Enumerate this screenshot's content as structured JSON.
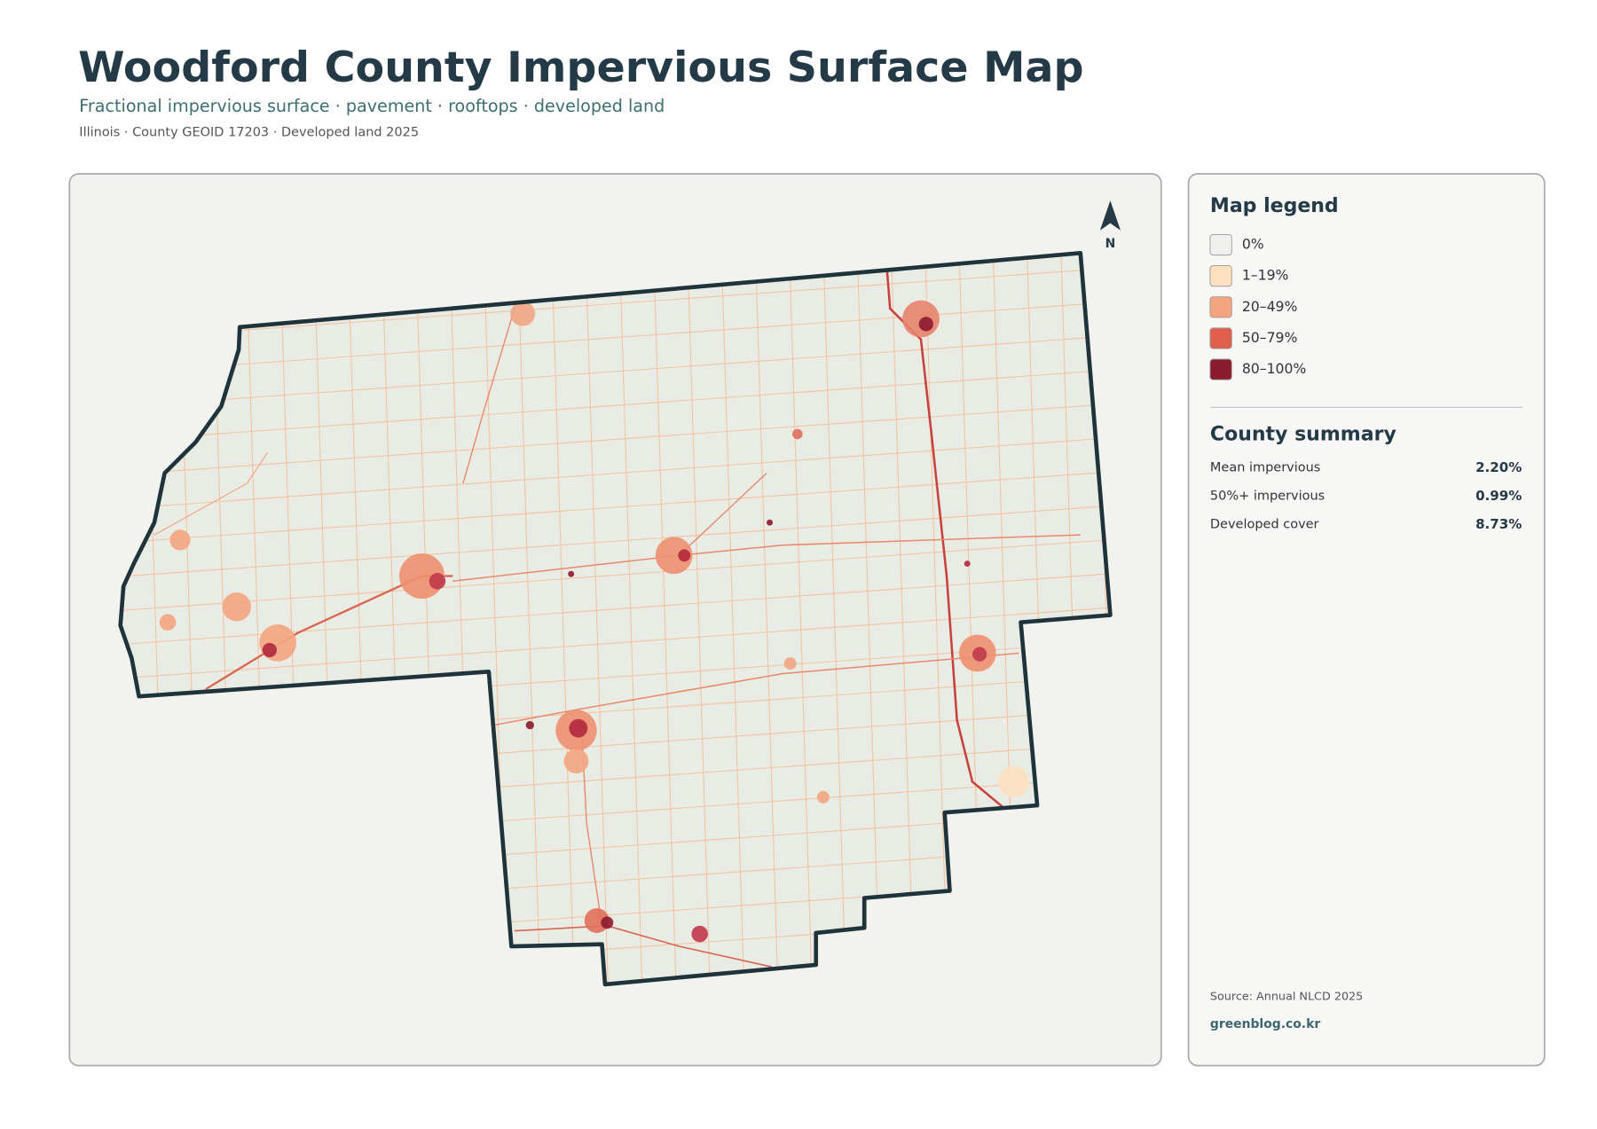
{
  "header": {
    "title": "Woodford County Impervious Surface Map",
    "subtitle": "Fractional impervious surface · pavement · rooftops · developed land",
    "meta": "Illinois · County GEOID 17203 · Developed land 2025"
  },
  "map": {
    "north_label": "N"
  },
  "legend": {
    "title": "Map legend",
    "items": [
      {
        "label": "0%",
        "color": "#f0f0ee"
      },
      {
        "label": "1–19%",
        "color": "#fde0c0"
      },
      {
        "label": "20–49%",
        "color": "#f4a57f"
      },
      {
        "label": "50–79%",
        "color": "#df5e4c"
      },
      {
        "label": "80–100%",
        "color": "#8c1a2f"
      }
    ]
  },
  "summary": {
    "title": "County summary",
    "rows": [
      {
        "label": "Mean impervious",
        "value": "2.20%"
      },
      {
        "label": "50%+ impervious",
        "value": "0.99%"
      },
      {
        "label": "Developed cover",
        "value": "8.73%"
      }
    ]
  },
  "footer": {
    "source": "Source: Annual NLCD 2025",
    "site": "greenblog.co.kr"
  }
}
